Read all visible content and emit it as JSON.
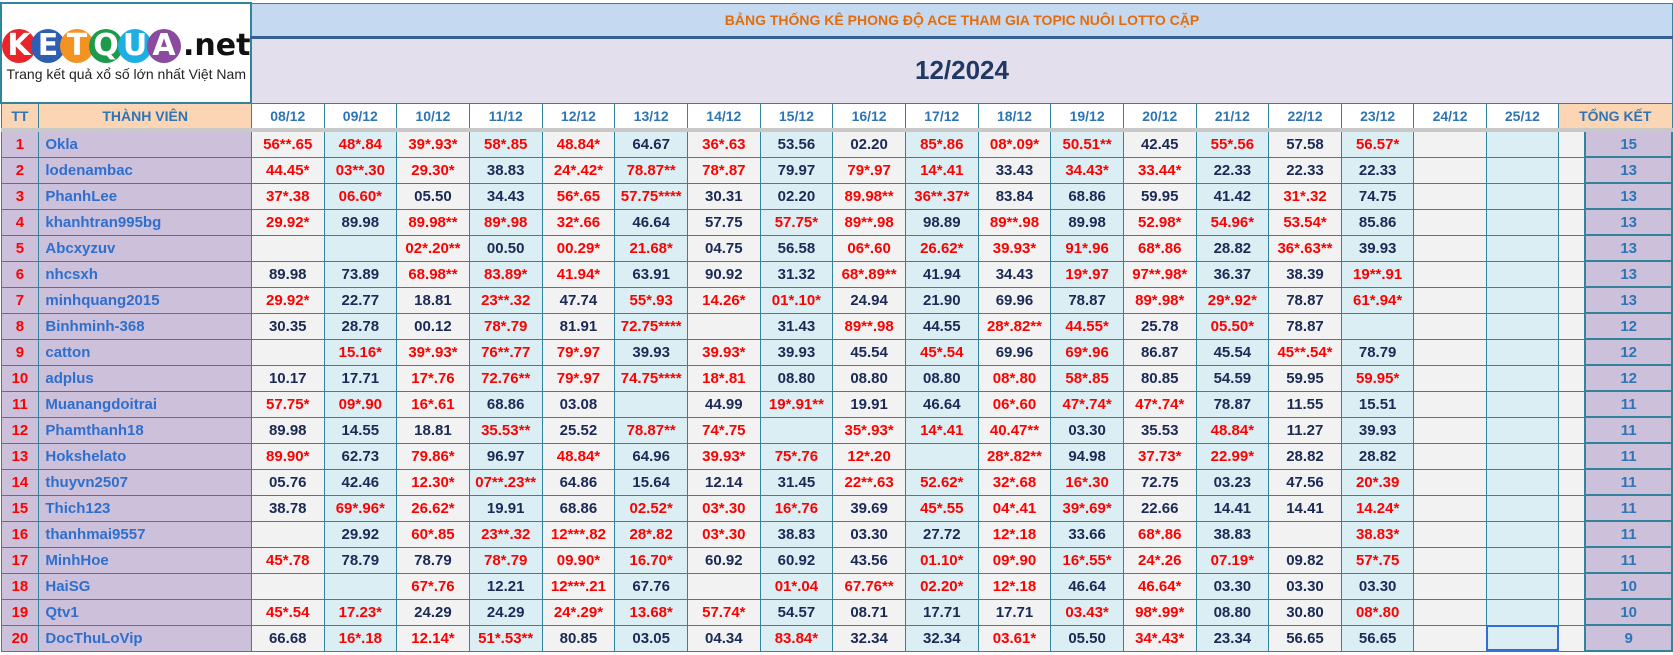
{
  "logo": {
    "letters": [
      {
        "char": "K",
        "color": "#e8252b"
      },
      {
        "char": "E",
        "color": "#2f5fb3"
      },
      {
        "char": "T",
        "color": "#f39323"
      },
      {
        "char": "Q",
        "color": "#1e9a4b"
      },
      {
        "char": "U",
        "color": "#1eaee4"
      },
      {
        "char": "A",
        "color": "#8a4b9e"
      }
    ],
    "suffix": ".net",
    "tagline": "Trang kết quả xổ số lớn nhất Việt Nam"
  },
  "title": "BẢNG THỐNG KÊ PHONG ĐỘ ACE THAM GIA TOPIC NUÔI LOTTO CẶP",
  "month": "12/2024",
  "headers": {
    "tt": "TT",
    "member": "THÀNH VIÊN",
    "dates": [
      "08/12",
      "09/12",
      "10/12",
      "11/12",
      "12/12",
      "13/12",
      "14/12",
      "15/12",
      "16/12",
      "17/12",
      "18/12",
      "19/12",
      "20/12",
      "21/12",
      "22/12",
      "23/12",
      "24/12",
      "25/12"
    ],
    "total": "TỔNG KẾT"
  },
  "colors": {
    "hit": "#ff0000",
    "plain": "#1b2a55",
    "border": "#31849b",
    "accent": "#2e75b6"
  },
  "rows": [
    {
      "tt": "1",
      "name": "Okla",
      "values": [
        "56**.65",
        "48*.84",
        "39*.93*",
        "58*.85",
        "48.84*",
        "64.67",
        "36*.63",
        "53.56",
        "02.20",
        "85*.86",
        "08*.09*",
        "50.51**",
        "42.45",
        "55*.56",
        "57.58",
        "56.57*",
        "",
        ""
      ],
      "total": "15"
    },
    {
      "tt": "2",
      "name": "lodenambac",
      "values": [
        "44.45*",
        "03**.30",
        "29.30*",
        "38.83",
        "24*.42*",
        "78.87**",
        "78*.87",
        "79.97",
        "79*.97",
        "14*.41",
        "33.43",
        "34.43*",
        "33.44*",
        "22.33",
        "22.33",
        "22.33",
        "",
        ""
      ],
      "total": "13"
    },
    {
      "tt": "3",
      "name": "PhanhLee",
      "values": [
        "37*.38",
        "06.60*",
        "05.50",
        "34.43",
        "56*.65",
        "57.75****",
        "30.31",
        "02.20",
        "89.98**",
        "36**.37*",
        "83.84",
        "68.86",
        "59.95",
        "41.42",
        "31*.32",
        "74.75",
        "",
        ""
      ],
      "total": "13"
    },
    {
      "tt": "4",
      "name": "khanhtran995bg",
      "values": [
        "29.92*",
        "89.98",
        "89.98**",
        "89*.98",
        "32*.66",
        "46.64",
        "57.75",
        "57.75*",
        "89**.98",
        "98.89",
        "89**.98",
        "89.98",
        "52.98*",
        "54.96*",
        "53.54*",
        "85.86",
        "",
        ""
      ],
      "total": "13"
    },
    {
      "tt": "5",
      "name": "Abcxyzuv",
      "values": [
        "",
        "",
        "02*.20**",
        "00.50",
        "00.29*",
        "21.68*",
        "04.75",
        "56.58",
        "06*.60",
        "26.62*",
        "39.93*",
        "91*.96",
        "68*.86",
        "28.82",
        "36*.63**",
        "39.93",
        "",
        ""
      ],
      "total": "13"
    },
    {
      "tt": "6",
      "name": "nhcsxh",
      "values": [
        "89.98",
        "73.89",
        "68.98**",
        "83.89*",
        "41.94*",
        "63.91",
        "90.92",
        "31.32",
        "68*.89**",
        "41.94",
        "34.43",
        "19*.97",
        "97**.98*",
        "36.37",
        "38.39",
        "19**.91",
        "",
        ""
      ],
      "total": "13"
    },
    {
      "tt": "7",
      "name": "minhquang2015",
      "values": [
        "29.92*",
        "22.77",
        "18.81",
        "23**.32",
        "47.74",
        "55*.93",
        "14.26*",
        "01*.10*",
        "24.94",
        "21.90",
        "69.96",
        "78.87",
        "89*.98*",
        "29*.92*",
        "78.87",
        "61*.94*",
        "",
        ""
      ],
      "total": "13"
    },
    {
      "tt": "8",
      "name": "Binhminh-368",
      "values": [
        "30.35",
        "28.78",
        "00.12",
        "78*.79",
        "81.91",
        "72.75****",
        "",
        "31.43",
        "89**.98",
        "44.55",
        "28*.82**",
        "44.55*",
        "25.78",
        "05.50*",
        "78.87",
        "",
        "",
        ""
      ],
      "total": "12"
    },
    {
      "tt": "9",
      "name": "catton",
      "values": [
        "",
        "15.16*",
        "39*.93*",
        "76**.77",
        "79*.97",
        "39.93",
        "39.93*",
        "39.93",
        "45.54",
        "45*.54",
        "69.96",
        "69*.96",
        "86.87",
        "45.54",
        "45**.54*",
        "78.79",
        "",
        ""
      ],
      "total": "12"
    },
    {
      "tt": "10",
      "name": "adplus",
      "values": [
        "10.17",
        "17.71",
        "17*.76",
        "72.76**",
        "79*.97",
        "74.75****",
        "18*.81",
        "08.80",
        "08.80",
        "08.80",
        "08*.80",
        "58*.85",
        "80.85",
        "54.59",
        "59.95",
        "59.95*",
        "",
        ""
      ],
      "total": "12"
    },
    {
      "tt": "11",
      "name": "Muanangdoitrai",
      "values": [
        "57.75*",
        "09*.90",
        "16*.61",
        "68.86",
        "03.08",
        "",
        "44.99",
        "19*.91**",
        "19.91",
        "46.64",
        "06*.60",
        "47*.74*",
        "47*.74*",
        "78.87",
        "11.55",
        "15.51",
        "",
        ""
      ],
      "total": "11"
    },
    {
      "tt": "12",
      "name": "Phamthanh18",
      "values": [
        "89.98",
        "14.55",
        "18.81",
        "35.53**",
        "25.52",
        "78.87**",
        "74*.75",
        "",
        "35*.93*",
        "14*.41",
        "40.47**",
        "03.30",
        "35.53",
        "48.84*",
        "11.27",
        "39.93",
        "",
        ""
      ],
      "total": "11"
    },
    {
      "tt": "13",
      "name": "Hokshelato",
      "values": [
        "89.90*",
        "62.73",
        "79.86*",
        "96.97",
        "48.84*",
        "64.96",
        "39.93*",
        "75*.76",
        "12*.20",
        "",
        "28*.82**",
        "94.98",
        "37.73*",
        "22.99*",
        "28.82",
        "28.82",
        "",
        ""
      ],
      "total": "11"
    },
    {
      "tt": "14",
      "name": "thuyvn2507",
      "values": [
        "05.76",
        "42.46",
        "12.30*",
        "07**.23**",
        "64.86",
        "15.64",
        "12.14",
        "31.45",
        "22**.63",
        "52.62*",
        "32*.68",
        "16*.30",
        "72.75",
        "03.23",
        "47.56",
        "20*.39",
        "",
        ""
      ],
      "total": "11"
    },
    {
      "tt": "15",
      "name": "Thich123",
      "values": [
        "38.78",
        "69*.96*",
        "26.62*",
        "19.91",
        "68.86",
        "02.52*",
        "03*.30",
        "16*.76",
        "39.69",
        "45*.55",
        "04*.41",
        "39*.69*",
        "22.66",
        "14.41",
        "14.41",
        "14.24*",
        "",
        ""
      ],
      "total": "11"
    },
    {
      "tt": "16",
      "name": "thanhmai9557",
      "values": [
        "",
        "29.92",
        "60*.85",
        "23**.32",
        "12***.82",
        "28*.82",
        "03*.30",
        "38.83",
        "03.30",
        "27.72",
        "12*.18",
        "33.66",
        "68*.86",
        "38.83",
        "",
        "38.83*",
        "",
        ""
      ],
      "total": "11"
    },
    {
      "tt": "17",
      "name": "MinhHoe",
      "values": [
        "45*.78",
        "78.79",
        "78.79",
        "78*.79",
        "09.90*",
        "16.70*",
        "60.92",
        "60.92",
        "43.56",
        "01.10*",
        "09*.90",
        "16*.55*",
        "24*.26",
        "07.19*",
        "09.82",
        "57*.75",
        "",
        ""
      ],
      "total": "11"
    },
    {
      "tt": "18",
      "name": "HaiSG",
      "values": [
        "",
        "",
        "67*.76",
        "12.21",
        "12***.21",
        "67.76",
        "",
        "01*.04",
        "67.76**",
        "02.20*",
        "12*.18",
        "46.64",
        "46.64*",
        "03.30",
        "03.30",
        "03.30",
        "",
        ""
      ],
      "total": "10"
    },
    {
      "tt": "19",
      "name": "Qtv1",
      "values": [
        "45*.54",
        "17.23*",
        "24.29",
        "24.29",
        "24*.29*",
        "13.68*",
        "57.74*",
        "54.57",
        "08.71",
        "17.71",
        "17.71",
        "03.43*",
        "98*.99*",
        "08.80",
        "30.80",
        "08*.80",
        "",
        ""
      ],
      "total": "10"
    },
    {
      "tt": "20",
      "name": "DocThuLoVip",
      "values": [
        "66.68",
        "16*.18",
        "12.14*",
        "51*.53**",
        "80.85",
        "03.05",
        "04.34",
        "83.84*",
        "32.34",
        "32.34",
        "03.61*",
        "05.50",
        "34*.43*",
        "23.34",
        "56.65",
        "56.65",
        "",
        ""
      ],
      "total": "9"
    }
  ]
}
